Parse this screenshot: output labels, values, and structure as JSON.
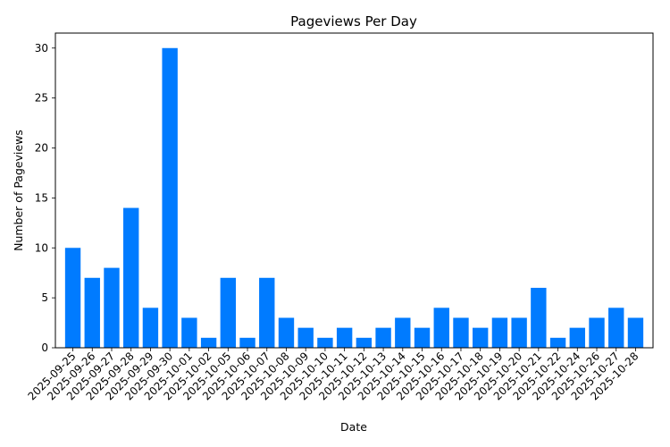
{
  "chart_data": {
    "type": "bar",
    "title": "Pageviews Per Day",
    "xlabel": "Date",
    "ylabel": "Number of Pageviews",
    "ylim": [
      0,
      31.5
    ],
    "yticks": [
      0,
      5,
      10,
      15,
      20,
      25,
      30
    ],
    "grid": false,
    "bar_color": "#007bff",
    "categories": [
      "2025-09-25",
      "2025-09-26",
      "2025-09-27",
      "2025-09-28",
      "2025-09-29",
      "2025-09-30",
      "2025-10-01",
      "2025-10-02",
      "2025-10-05",
      "2025-10-06",
      "2025-10-07",
      "2025-10-08",
      "2025-10-09",
      "2025-10-10",
      "2025-10-11",
      "2025-10-12",
      "2025-10-13",
      "2025-10-14",
      "2025-10-15",
      "2025-10-16",
      "2025-10-17",
      "2025-10-18",
      "2025-10-19",
      "2025-10-20",
      "2025-10-21",
      "2025-10-22",
      "2025-10-24",
      "2025-10-26",
      "2025-10-27",
      "2025-10-28"
    ],
    "values": [
      10,
      7,
      8,
      14,
      4,
      30,
      3,
      1,
      7,
      1,
      7,
      3,
      2,
      1,
      2,
      1,
      2,
      3,
      2,
      4,
      3,
      2,
      3,
      3,
      6,
      1,
      2,
      3,
      4,
      3
    ]
  }
}
